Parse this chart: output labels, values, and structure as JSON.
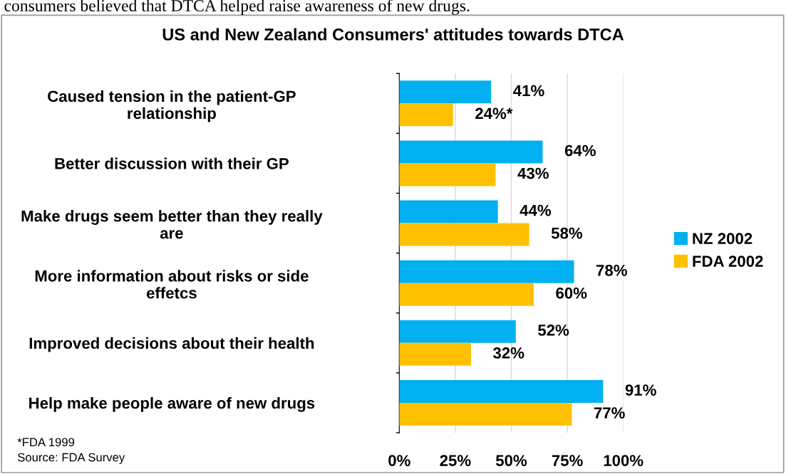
{
  "chart_data": {
    "type": "bar",
    "orientation": "horizontal",
    "title": "US and New Zealand Consumers' attitudes towards DTCA",
    "categories": [
      "Caused tension in the patient-GP\nrelationship",
      "Better discussion with their GP",
      "Make drugs seem better than they really\nare",
      "More information about risks or side\neffetcs",
      "Improved decisions about their health",
      "Help make people aware of new drugs"
    ],
    "series": [
      {
        "name": "NZ 2002",
        "color": "#00b0f0",
        "values": [
          41,
          64,
          44,
          78,
          52,
          91
        ],
        "value_labels": [
          "41%",
          "64%",
          "44%",
          "78%",
          "52%",
          "91%"
        ]
      },
      {
        "name": "FDA 2002",
        "color": "#ffc000",
        "values": [
          24,
          43,
          58,
          60,
          32,
          77
        ],
        "value_labels": [
          "24%*",
          "43%",
          "58%",
          "60%",
          "32%",
          "77%"
        ]
      }
    ],
    "xlim": [
      0,
      100
    ],
    "xticks": [
      {
        "value": 0,
        "label": "0%"
      },
      {
        "value": 25,
        "label": "25%"
      },
      {
        "value": 50,
        "label": "50%"
      },
      {
        "value": 75,
        "label": "75%"
      },
      {
        "value": 100,
        "label": "100%"
      }
    ],
    "grid": "x",
    "legend": "right",
    "annotations": [
      "consumers believed that DTCA helped raise awareness of new drugs.",
      "*FDA 1999",
      "Source: FDA Survey"
    ]
  }
}
